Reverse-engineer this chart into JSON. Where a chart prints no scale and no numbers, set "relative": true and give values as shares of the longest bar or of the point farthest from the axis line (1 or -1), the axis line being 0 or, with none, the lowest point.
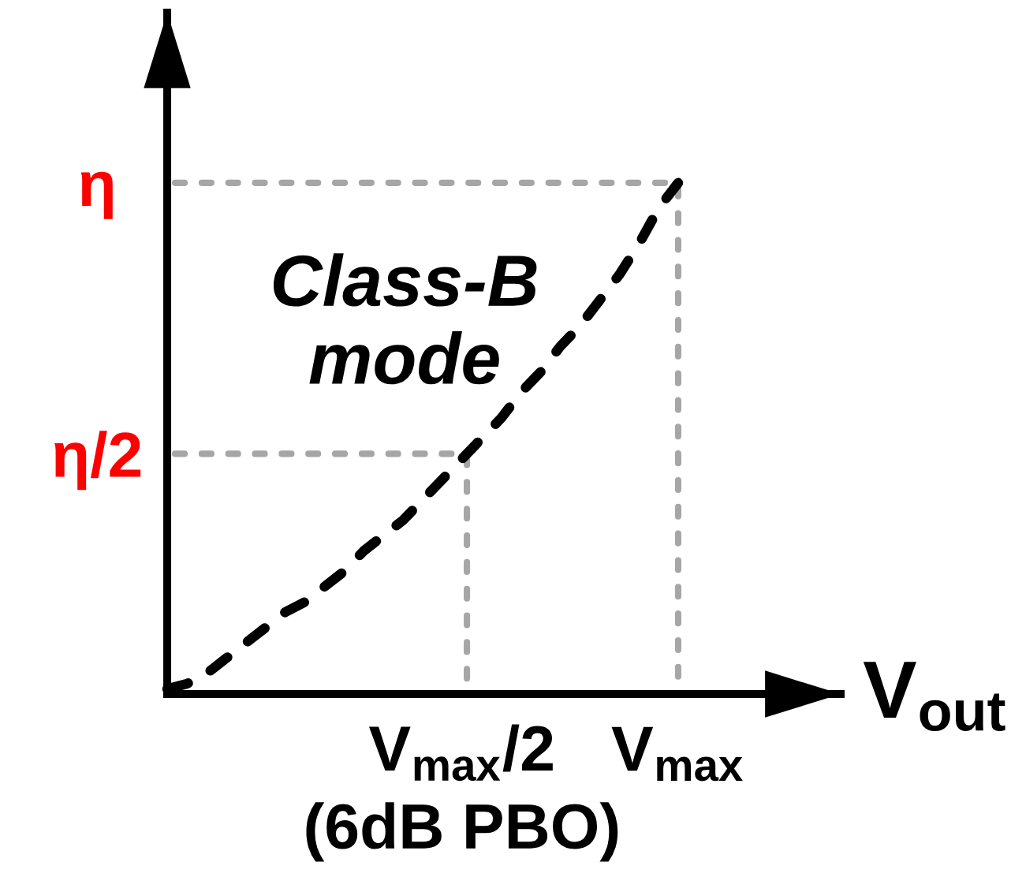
{
  "chart_data": {
    "type": "line",
    "relative": true,
    "tick_labels": "x",
    "xlabel": "V$_{out}$",
    "categories": [
      null,
      null,
      null,
      null,
      null,
      null,
      null,
      null,
      null,
      null,
      null,
      null,
      null,
      null,
      null,
      "V$_{max}$/2\n(6dB PBO)",
      null,
      null,
      null,
      null,
      null,
      null,
      null,
      null,
      null,
      null,
      "V$_{max}$"
    ],
    "series": [
      {
        "name": "Class-B\nmode",
        "color": "#000000",
        "line_style": "dashed",
        "values": [
          0.01,
          0.02,
          0.04,
          0.07,
          0.1,
          0.13,
          0.16,
          0.18,
          0.21,
          0.24,
          0.28,
          0.31,
          0.34,
          0.38,
          0.42,
          0.46,
          0.5,
          0.54,
          0.59,
          0.63,
          0.68,
          0.72,
          0.77,
          0.82,
          0.88,
          0.95,
          1.0
        ]
      }
    ],
    "ref_lines": [
      {
        "axis": "y",
        "value": 1,
        "label": "η",
        "color": "#a6a6a6",
        "line_style": "dotted"
      },
      {
        "axis": "y",
        "value": 0.47,
        "label": "η/2",
        "color": "#a6a6a6",
        "line_style": "dotted"
      }
    ]
  }
}
